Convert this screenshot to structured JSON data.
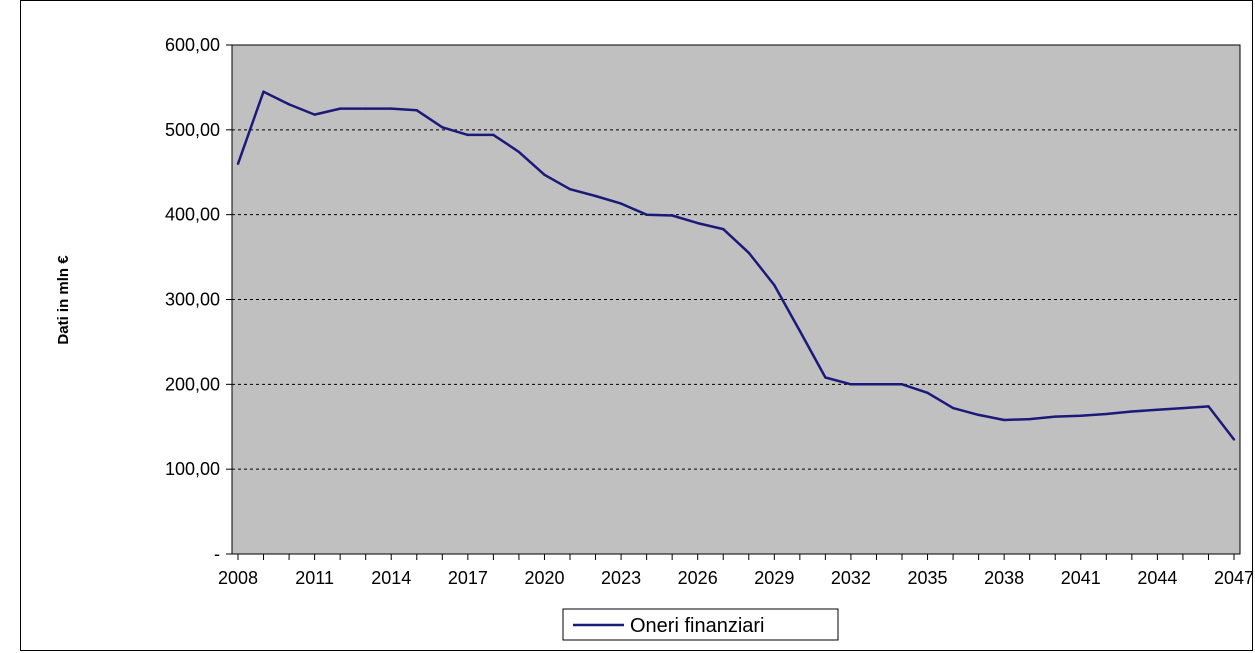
{
  "chart_data": {
    "type": "line",
    "title": "",
    "xlabel": "",
    "ylabel": "Dati in mln €",
    "ylim": [
      0,
      600
    ],
    "y_ticks": [
      0,
      100,
      200,
      300,
      400,
      500,
      600
    ],
    "y_tick_labels": [
      "-",
      "100,00",
      "200,00",
      "300,00",
      "400,00",
      "500,00",
      "600,00"
    ],
    "x_tick_labels": [
      "2008",
      "2011",
      "2014",
      "2017",
      "2020",
      "2023",
      "2026",
      "2029",
      "2032",
      "2035",
      "2038",
      "2041",
      "2044",
      "2047"
    ],
    "x": [
      2008,
      2009,
      2010,
      2011,
      2012,
      2013,
      2014,
      2015,
      2016,
      2017,
      2018,
      2019,
      2020,
      2021,
      2022,
      2023,
      2024,
      2025,
      2026,
      2027,
      2028,
      2029,
      2030,
      2031,
      2032,
      2033,
      2034,
      2035,
      2036,
      2037,
      2038,
      2039,
      2040,
      2041,
      2042,
      2043,
      2044,
      2045,
      2046,
      2047
    ],
    "series": [
      {
        "name": "Oneri finanziari",
        "color": "#1a1a7a",
        "values": [
          460,
          545,
          530,
          518,
          525,
          525,
          525,
          523,
          503,
          494,
          494,
          474,
          447,
          430,
          422,
          413,
          400,
          399,
          390,
          383,
          355,
          317,
          263,
          208,
          200,
          200,
          200,
          190,
          172,
          164,
          158,
          159,
          162,
          163,
          165,
          168,
          170,
          172,
          174,
          135
        ]
      }
    ],
    "grid": {
      "horizontal": true,
      "style": "dotted"
    },
    "plot_background": "#c0c0c0",
    "legend_position": "bottom-center"
  }
}
